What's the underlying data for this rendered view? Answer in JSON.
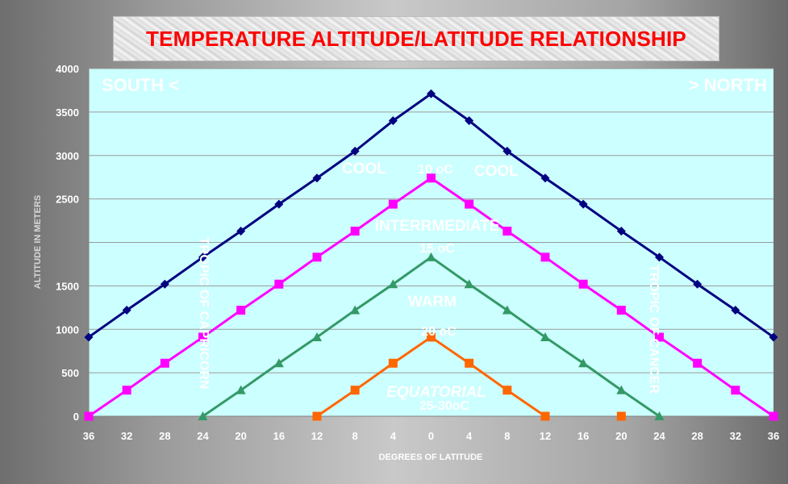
{
  "chart_data": {
    "type": "line",
    "title": "TEMPERATURE ALTITUDE/LATITUDE RELATIONSHIP",
    "xlabel": "DEGREES OF LATITUDE",
    "ylabel": "ALTITUDE IN METERS",
    "x_tick_labels": [
      "36",
      "32",
      "28",
      "24",
      "20",
      "16",
      "12",
      "8",
      "4",
      "0",
      "4",
      "8",
      "12",
      "16",
      "20",
      "24",
      "28",
      "32",
      "36"
    ],
    "y_tick_labels": [
      {
        "value": 0,
        "label": "0"
      },
      {
        "value": 500,
        "label": "500"
      },
      {
        "value": 1000,
        "label": "1000"
      },
      {
        "value": 1500,
        "label": "1500"
      },
      {
        "value": 2500,
        "label": "2500"
      },
      {
        "value": 3000,
        "label": "3000"
      },
      {
        "value": 3500,
        "label": "3500"
      },
      {
        "value": 4000,
        "label": "4000"
      }
    ],
    "ylim": [
      0,
      4000
    ],
    "grid": "horizontal",
    "colors": {
      "plot_bg": "#ccffff",
      "title_text": "#ff0000"
    },
    "series": [
      {
        "color": "#000080",
        "marker": "diamond",
        "points": [
          [
            0,
            910
          ],
          [
            1,
            1220
          ],
          [
            2,
            1520
          ],
          [
            3,
            1830
          ],
          [
            4,
            2130
          ],
          [
            5,
            2440
          ],
          [
            6,
            2740
          ],
          [
            7,
            3050
          ],
          [
            8,
            3400
          ],
          [
            9,
            3710
          ],
          [
            10,
            3400
          ],
          [
            11,
            3050
          ],
          [
            12,
            2740
          ],
          [
            13,
            2440
          ],
          [
            14,
            2130
          ],
          [
            15,
            1830
          ],
          [
            16,
            1520
          ],
          [
            17,
            1220
          ],
          [
            18,
            910
          ]
        ]
      },
      {
        "color": "#ff00ff",
        "marker": "square",
        "points": [
          [
            0,
            0
          ],
          [
            1,
            300
          ],
          [
            2,
            610
          ],
          [
            3,
            910
          ],
          [
            4,
            1220
          ],
          [
            5,
            1520
          ],
          [
            6,
            1830
          ],
          [
            7,
            2130
          ],
          [
            8,
            2440
          ],
          [
            9,
            2740
          ],
          [
            10,
            2440
          ],
          [
            11,
            2130
          ],
          [
            12,
            1830
          ],
          [
            13,
            1520
          ],
          [
            14,
            1220
          ],
          [
            15,
            910
          ],
          [
            16,
            610
          ],
          [
            17,
            300
          ],
          [
            18,
            0
          ]
        ]
      },
      {
        "color": "#339966",
        "marker": "triangle",
        "points": [
          [
            3,
            0
          ],
          [
            4,
            300
          ],
          [
            5,
            610
          ],
          [
            6,
            910
          ],
          [
            7,
            1220
          ],
          [
            8,
            1520
          ],
          [
            9,
            1830
          ],
          [
            10,
            1520
          ],
          [
            11,
            1220
          ],
          [
            12,
            910
          ],
          [
            13,
            610
          ],
          [
            14,
            300
          ],
          [
            15,
            0
          ]
        ]
      },
      {
        "color": "#ff6600",
        "marker": "square",
        "points": [
          [
            6,
            0
          ],
          [
            7,
            300
          ],
          [
            8,
            610
          ],
          [
            9,
            910
          ],
          [
            10,
            610
          ],
          [
            11,
            300
          ],
          [
            12,
            0
          ]
        ],
        "extra_points": [
          [
            14,
            0
          ]
        ]
      }
    ],
    "annotations": {
      "south": "SOUTH <",
      "north": "> NORTH",
      "cool_left": "COOL",
      "cool_right": "COOL",
      "temp_10": "10 oC",
      "intermediate": "INTERRMEDIATE",
      "temp_15": "15 oC",
      "warm": "WARM",
      "temp_20": "20 oC",
      "equatorial": "EQUATORIAL",
      "temp_25": "25-30oC",
      "tropic_capricorn": "TROPIC OF CAPRICORN",
      "tropic_cancer": "TROPIC OF CANCER"
    }
  }
}
